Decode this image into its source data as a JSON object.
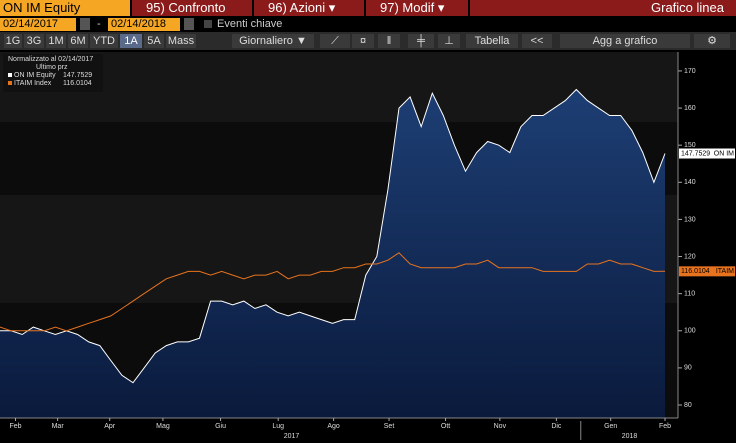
{
  "toolbar": {
    "ticker": "ON IM Equity",
    "compare": "95) Confronto",
    "actions": "96) Azioni",
    "modify": "97) Modif",
    "chart_kind": "Grafico linea",
    "start_date": "02/14/2017",
    "dash": "-",
    "end_date": "02/14/2018",
    "events": "Eventi chiave",
    "ranges": [
      "1G",
      "3G",
      "1M",
      "6M",
      "YTD",
      "1A",
      "5A",
      "Mass"
    ],
    "selected_range": 5,
    "frequency": "Giornaliero",
    "table": "Tabella",
    "back": "<<",
    "add": "Agg a grafico"
  },
  "chart_data": {
    "type": "line",
    "legend": {
      "normalized": "Normalizzato al 02/14/2017",
      "field": "Ultimo prz"
    },
    "xlim": [
      0,
      60
    ],
    "xticks": [
      {
        "value": 1.4,
        "label": "Feb"
      },
      {
        "value": 5.2,
        "label": "Mar"
      },
      {
        "value": 9.9,
        "label": "Apr"
      },
      {
        "value": 14.7,
        "label": "Mag"
      },
      {
        "value": 19.9,
        "label": "Giu"
      },
      {
        "value": 25.1,
        "label": "Lug"
      },
      {
        "value": 30.1,
        "label": "Ago"
      },
      {
        "value": 35.1,
        "label": "Set"
      },
      {
        "value": 40.2,
        "label": "Ott"
      },
      {
        "value": 45.1,
        "label": "Nov"
      },
      {
        "value": 50.2,
        "label": "Dic"
      },
      {
        "value": 55.1,
        "label": "Gen"
      },
      {
        "value": 60,
        "label": "Feb"
      }
    ],
    "year_labels": [
      {
        "value": 26.3,
        "label": "2017"
      },
      {
        "value": 56.8,
        "label": "2018"
      }
    ],
    "year_break": 52.4,
    "ylim": [
      76.5,
      175.1
    ],
    "yticks": [
      80,
      90,
      100,
      110,
      120,
      130,
      140,
      150,
      160,
      170
    ],
    "series": [
      {
        "name": "ON IM Equity",
        "tag": "ON IM",
        "color": "#ffffff",
        "area": true,
        "values": [
          100,
          100,
          99,
          101,
          100,
          99,
          100,
          99,
          97,
          96,
          92,
          88,
          86,
          90,
          94,
          96,
          97,
          97,
          98,
          108,
          108,
          107,
          108,
          106,
          107,
          105,
          104,
          105,
          104,
          103,
          102,
          103,
          103,
          115,
          120,
          138,
          160,
          163,
          155,
          164,
          158,
          150,
          143,
          148,
          151,
          150,
          148,
          155,
          158,
          158,
          160,
          162,
          165,
          162,
          160,
          158,
          158,
          154,
          148,
          140,
          147.7529
        ]
      },
      {
        "name": "ITAIM Index",
        "tag": "ITAIM",
        "color": "#e8731e",
        "area": false,
        "values": [
          101,
          100,
          100,
          100,
          100,
          101,
          100,
          101,
          102,
          103,
          104,
          106,
          108,
          110,
          112,
          114,
          115,
          116,
          116,
          115,
          116,
          115,
          114,
          115,
          115,
          116,
          114,
          115,
          115,
          116,
          116,
          117,
          117,
          118,
          118,
          119,
          121,
          118,
          117,
          117,
          117,
          117,
          118,
          118,
          119,
          117,
          117,
          117,
          117,
          116,
          116,
          116,
          116,
          118,
          118,
          119,
          118,
          118,
          117,
          116,
          116.0104
        ]
      }
    ]
  }
}
